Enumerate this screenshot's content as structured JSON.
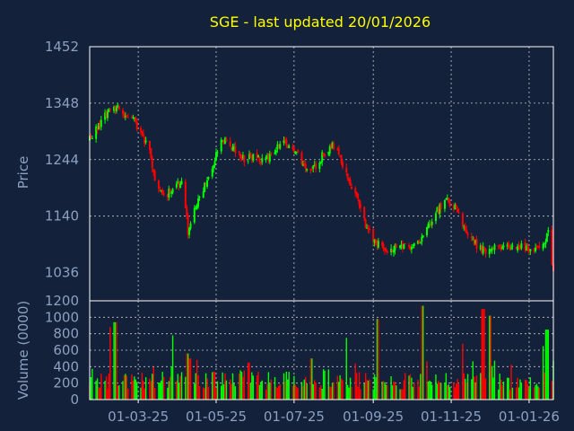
{
  "colors": {
    "background": "#13213a",
    "title": "#ffff00",
    "axis_text": "#8ca0c0",
    "frame": "#ffffff",
    "grid": "#c8c8c8",
    "up": "#00ff00",
    "down": "#ff0000"
  },
  "chart_data": [
    {
      "type": "candlestick",
      "title": "SGE - last updated 20/01/2026",
      "ylabel": "Price",
      "ylim": [
        984,
        1452
      ],
      "yticks": [
        1036,
        1140,
        1244,
        1348,
        1452
      ],
      "grid": true,
      "xlim": [
        "2025-01-22",
        "2026-01-20"
      ],
      "xticks": [
        "2025-03-01",
        "2025-05-01",
        "2025-07-01",
        "2025-09-01",
        "2025-11-01",
        "2026-01-01"
      ],
      "xtick_labels": [
        "01-03-25",
        "01-05-25",
        "01-07-25",
        "01-09-25",
        "01-11-25",
        "01-01-26"
      ],
      "anchors": [
        [
          "2025-01-22",
          1280
        ],
        [
          "2025-01-29",
          1310
        ],
        [
          "2025-02-05",
          1330
        ],
        [
          "2025-02-10",
          1342
        ],
        [
          "2025-02-17",
          1328
        ],
        [
          "2025-02-24",
          1322
        ],
        [
          "2025-03-03",
          1295
        ],
        [
          "2025-03-10",
          1255
        ],
        [
          "2025-03-15",
          1200
        ],
        [
          "2025-03-22",
          1175
        ],
        [
          "2025-03-29",
          1195
        ],
        [
          "2025-04-05",
          1205
        ],
        [
          "2025-04-09",
          1110
        ],
        [
          "2025-04-14",
          1150
        ],
        [
          "2025-04-21",
          1190
        ],
        [
          "2025-04-27",
          1225
        ],
        [
          "2025-05-03",
          1270
        ],
        [
          "2025-05-10",
          1285
        ],
        [
          "2025-05-17",
          1255
        ],
        [
          "2025-05-24",
          1245
        ],
        [
          "2025-05-31",
          1250
        ],
        [
          "2025-06-07",
          1240
        ],
        [
          "2025-06-14",
          1255
        ],
        [
          "2025-06-21",
          1280
        ],
        [
          "2025-06-28",
          1265
        ],
        [
          "2025-07-05",
          1250
        ],
        [
          "2025-07-12",
          1215
        ],
        [
          "2025-07-19",
          1235
        ],
        [
          "2025-07-26",
          1262
        ],
        [
          "2025-08-02",
          1270
        ],
        [
          "2025-08-06",
          1250
        ],
        [
          "2025-08-12",
          1205
        ],
        [
          "2025-08-19",
          1180
        ],
        [
          "2025-08-26",
          1120
        ],
        [
          "2025-09-02",
          1095
        ],
        [
          "2025-09-09",
          1085
        ],
        [
          "2025-09-16",
          1075
        ],
        [
          "2025-09-23",
          1090
        ],
        [
          "2025-09-30",
          1082
        ],
        [
          "2025-10-07",
          1095
        ],
        [
          "2025-10-14",
          1120
        ],
        [
          "2025-10-21",
          1150
        ],
        [
          "2025-10-28",
          1168
        ],
        [
          "2025-11-04",
          1160
        ],
        [
          "2025-11-09",
          1130
        ],
        [
          "2025-11-16",
          1100
        ],
        [
          "2025-11-23",
          1080
        ],
        [
          "2025-11-30",
          1075
        ],
        [
          "2025-12-07",
          1085
        ],
        [
          "2025-12-14",
          1080
        ],
        [
          "2025-12-21",
          1082
        ],
        [
          "2025-12-28",
          1085
        ],
        [
          "2026-01-04",
          1075
        ],
        [
          "2026-01-11",
          1080
        ],
        [
          "2026-01-16",
          1115
        ],
        [
          "2026-01-20",
          1035
        ]
      ],
      "note_x_units": "dates"
    },
    {
      "type": "bar",
      "ylabel": "Volume (0000)",
      "ylim": [
        0,
        1200
      ],
      "yticks": [
        0,
        200,
        400,
        600,
        800,
        1000,
        1200
      ],
      "grid": true,
      "spikes": [
        [
          "2025-02-08",
          880
        ],
        [
          "2025-02-11",
          940
        ],
        [
          "2025-03-29",
          780
        ],
        [
          "2025-04-09",
          560
        ],
        [
          "2025-04-11",
          500
        ],
        [
          "2025-05-26",
          450
        ],
        [
          "2025-07-14",
          500
        ],
        [
          "2025-08-10",
          750
        ],
        [
          "2025-09-05",
          980
        ],
        [
          "2025-10-10",
          1140
        ],
        [
          "2025-11-09",
          680
        ],
        [
          "2025-11-26",
          1100
        ],
        [
          "2025-12-01",
          1020
        ],
        [
          "2026-01-11",
          650
        ],
        [
          "2026-01-15",
          850
        ]
      ]
    }
  ]
}
